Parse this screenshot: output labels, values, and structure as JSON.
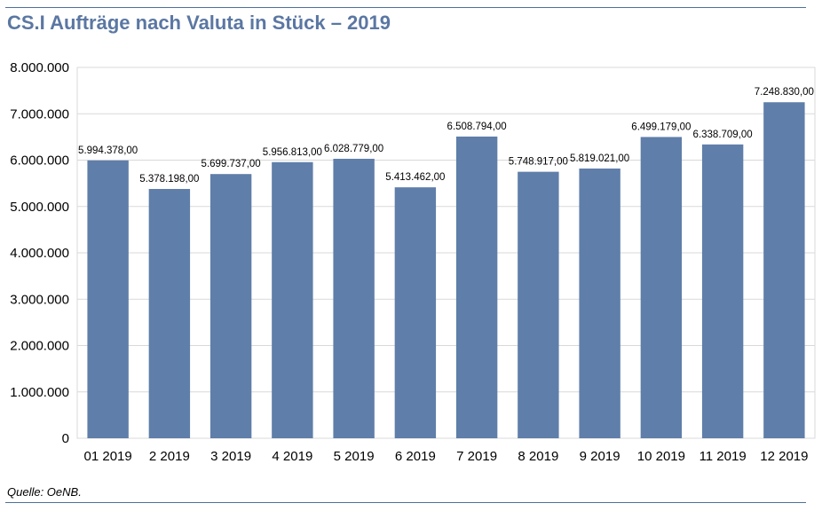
{
  "title": "CS.I Aufträge nach Valuta in Stück – 2019",
  "source": "Quelle: OeNB.",
  "colors": {
    "bar": "#5f7ea9",
    "accent": "#5b77a3",
    "grid": "#d9d9d9"
  },
  "chart_data": {
    "type": "bar",
    "title": "CS.I Aufträge nach Valuta in Stück – 2019",
    "xlabel": "",
    "ylabel": "",
    "ylim": [
      0,
      8000000
    ],
    "grid": true,
    "categories": [
      "01 2019",
      "2 2019",
      "3 2019",
      "4 2019",
      "5 2019",
      "6 2019",
      "7 2019",
      "8 2019",
      "9 2019",
      "10 2019",
      "11 2019",
      "12 2019"
    ],
    "values": [
      5994378,
      5378198,
      5699737,
      5956813,
      6028779,
      5413462,
      6508794,
      5748917,
      5819021,
      6499179,
      6338709,
      7248830
    ],
    "data_labels": [
      "5.994.378,00",
      "5.378.198,00",
      "5.699.737,00",
      "5.956.813,00",
      "6.028.779,00",
      "5.413.462,00",
      "6.508.794,00",
      "5.748.917,00",
      "5.819.021,00",
      "6.499.179,00",
      "6.338.709,00",
      "7.248.830,00"
    ],
    "y_ticks": [
      0,
      1000000,
      2000000,
      3000000,
      4000000,
      5000000,
      6000000,
      7000000,
      8000000
    ],
    "y_tick_labels": [
      "0",
      "1.000.000",
      "2.000.000",
      "3.000.000",
      "4.000.000",
      "5.000.000",
      "6.000.000",
      "7.000.000",
      "8.000.000"
    ]
  }
}
